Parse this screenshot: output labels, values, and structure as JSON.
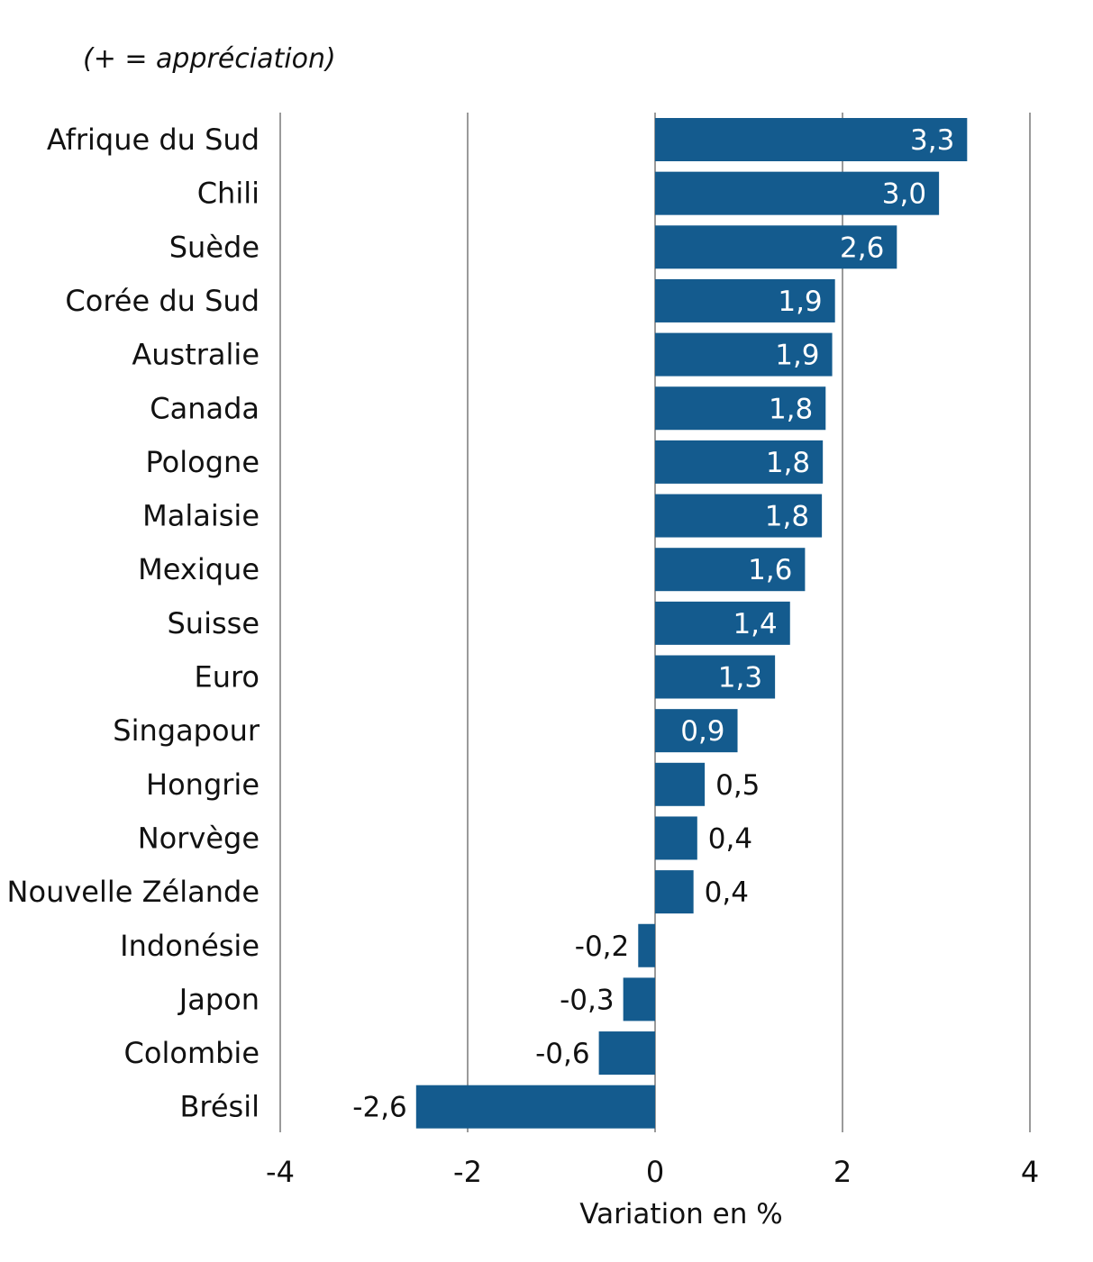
{
  "chart_data": {
    "type": "bar",
    "orientation": "horizontal",
    "annotation": "(+ = appréciation)",
    "xlabel": "Variation en %",
    "xlim": [
      -4,
      4
    ],
    "xticks": [
      -4,
      -2,
      0,
      2,
      4
    ],
    "xtick_labels": [
      "-4",
      "-2",
      "0",
      "2",
      "4"
    ],
    "bar_color": "#145b8e",
    "categories": [
      "Afrique du Sud",
      "Chili",
      "Suède",
      "Corée du Sud",
      "Australie",
      "Canada",
      "Pologne",
      "Malaisie",
      "Mexique",
      "Suisse",
      "Euro",
      "Singapour",
      "Hongrie",
      "Norvège",
      "Nouvelle Zélande",
      "Indonésie",
      "Japon",
      "Colombie",
      "Brésil"
    ],
    "values": [
      3.33,
      3.03,
      2.58,
      1.92,
      1.89,
      1.82,
      1.79,
      1.78,
      1.6,
      1.44,
      1.28,
      0.88,
      0.53,
      0.45,
      0.41,
      -0.18,
      -0.34,
      -0.6,
      -2.55
    ],
    "value_labels": [
      "3,3",
      "3,0",
      "2,6",
      "1,9",
      "1,9",
      "1,8",
      "1,8",
      "1,8",
      "1,6",
      "1,4",
      "1,3",
      "0,9",
      "0,5",
      "0,4",
      "0,4",
      "-0,2",
      "-0,3",
      "-0,6",
      "-2,6"
    ]
  }
}
